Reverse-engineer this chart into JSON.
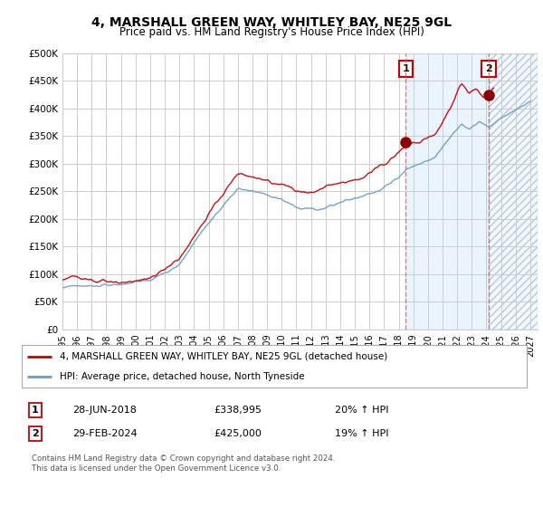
{
  "title": "4, MARSHALL GREEN WAY, WHITLEY BAY, NE25 9GL",
  "subtitle": "Price paid vs. HM Land Registry's House Price Index (HPI)",
  "ylabel_ticks": [
    "£0",
    "£50K",
    "£100K",
    "£150K",
    "£200K",
    "£250K",
    "£300K",
    "£350K",
    "£400K",
    "£450K",
    "£500K"
  ],
  "ytick_values": [
    0,
    50000,
    100000,
    150000,
    200000,
    250000,
    300000,
    350000,
    400000,
    450000,
    500000
  ],
  "ylim": [
    0,
    500000
  ],
  "xlim_start": 1995.0,
  "xlim_end": 2027.5,
  "xticks": [
    1995,
    1996,
    1997,
    1998,
    1999,
    2000,
    2001,
    2002,
    2003,
    2004,
    2005,
    2006,
    2007,
    2008,
    2009,
    2010,
    2011,
    2012,
    2013,
    2014,
    2015,
    2016,
    2017,
    2018,
    2019,
    2020,
    2021,
    2022,
    2023,
    2024,
    2025,
    2026,
    2027
  ],
  "hpi_line_color": "#6699cc",
  "price_line_color": "#cc0000",
  "marker1_date": 2018.49,
  "marker1_price": 338995,
  "marker2_date": 2024.16,
  "marker2_price": 425000,
  "legend_line1": "4, MARSHALL GREEN WAY, WHITLEY BAY, NE25 9GL (detached house)",
  "legend_line2": "HPI: Average price, detached house, North Tyneside",
  "footer": "Contains HM Land Registry data © Crown copyright and database right 2024.\nThis data is licensed under the Open Government Licence v3.0.",
  "background_color": "#ffffff",
  "grid_color": "#cccccc",
  "shade_color": "#ddeeff",
  "hatch_color": "#c8d8e8"
}
